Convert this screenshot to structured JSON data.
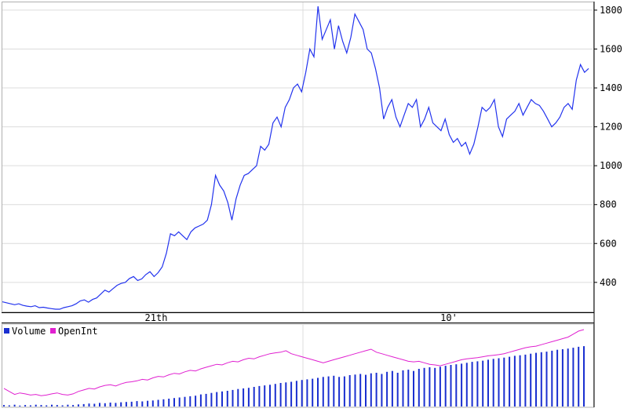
{
  "chart_data": [
    {
      "type": "line",
      "x_labels": [
        "21th",
        "10'"
      ],
      "yticks": [
        400,
        600,
        800,
        1000,
        1200,
        1400,
        1600,
        1800
      ],
      "ylim": [
        250,
        1840
      ],
      "grid": true,
      "series": [
        {
          "color": "#2233ee",
          "values": [
            300,
            295,
            290,
            285,
            290,
            282,
            278,
            275,
            280,
            270,
            272,
            268,
            265,
            262,
            262,
            270,
            275,
            280,
            290,
            305,
            310,
            298,
            312,
            320,
            340,
            360,
            350,
            368,
            385,
            395,
            400,
            420,
            430,
            410,
            418,
            440,
            455,
            430,
            450,
            480,
            550,
            650,
            640,
            660,
            640,
            620,
            660,
            680,
            690,
            700,
            720,
            800,
            950,
            900,
            870,
            810,
            720,
            830,
            900,
            950,
            960,
            980,
            1000,
            1100,
            1080,
            1110,
            1220,
            1250,
            1200,
            1300,
            1340,
            1400,
            1420,
            1380,
            1480,
            1600,
            1560,
            1820,
            1650,
            1700,
            1750,
            1600,
            1720,
            1640,
            1580,
            1660,
            1780,
            1740,
            1700,
            1600,
            1580,
            1500,
            1400,
            1240,
            1300,
            1340,
            1250,
            1200,
            1260,
            1320,
            1300,
            1340,
            1200,
            1240,
            1300,
            1220,
            1200,
            1180,
            1240,
            1160,
            1120,
            1140,
            1100,
            1120,
            1060,
            1110,
            1200,
            1300,
            1280,
            1300,
            1340,
            1200,
            1150,
            1240,
            1260,
            1280,
            1320,
            1260,
            1300,
            1340,
            1320,
            1310,
            1280,
            1240,
            1200,
            1220,
            1250,
            1300,
            1320,
            1290,
            1440,
            1520,
            1480,
            1500
          ]
        }
      ]
    },
    {
      "type": "bar",
      "legend": [
        {
          "label": "Volume",
          "color": "#1a2fd0"
        },
        {
          "label": "OpenInt",
          "color": "#e020d0"
        }
      ],
      "legend_position": "top-left",
      "series": [
        {
          "name": "Volume",
          "color": "#1a2fd0",
          "values": [
            5,
            4,
            6,
            3,
            5,
            4,
            6,
            5,
            4,
            6,
            5,
            4,
            6,
            5,
            7,
            8,
            10,
            9,
            12,
            11,
            13,
            12,
            14,
            15,
            16,
            18,
            17,
            19,
            20,
            22,
            24,
            26,
            28,
            30,
            32,
            34,
            36,
            40,
            42,
            45,
            48,
            50,
            52,
            55,
            58,
            60,
            62,
            65,
            68,
            70,
            72,
            75,
            78,
            80,
            82,
            85,
            88,
            90,
            92,
            95,
            98,
            100,
            102,
            98,
            100,
            104,
            106,
            108,
            105,
            110,
            112,
            108,
            115,
            118,
            112,
            120,
            122,
            118,
            125,
            128,
            130,
            128,
            132,
            135,
            138,
            140,
            142,
            145,
            148,
            150,
            152,
            155,
            158,
            160,
            162,
            165,
            168,
            170,
            172,
            175,
            178,
            180,
            182,
            185,
            188,
            190,
            192,
            195,
            198,
            200
          ]
        },
        {
          "name": "OpenInt",
          "color": "#e020d0",
          "values": [
            60,
            50,
            40,
            45,
            42,
            38,
            40,
            36,
            38,
            42,
            45,
            40,
            38,
            42,
            50,
            55,
            60,
            58,
            65,
            70,
            72,
            68,
            75,
            80,
            82,
            85,
            90,
            88,
            95,
            100,
            98,
            105,
            110,
            108,
            115,
            120,
            118,
            125,
            130,
            135,
            140,
            138,
            145,
            150,
            148,
            155,
            160,
            158,
            165,
            170,
            175,
            178,
            180,
            185,
            175,
            170,
            165,
            160,
            155,
            150,
            145,
            150,
            155,
            160,
            165,
            170,
            175,
            180,
            185,
            190,
            180,
            175,
            170,
            165,
            160,
            155,
            150,
            148,
            150,
            145,
            140,
            138,
            135,
            140,
            145,
            150,
            155,
            158,
            160,
            162,
            165,
            168,
            170,
            172,
            175,
            180,
            185,
            190,
            195,
            198,
            200,
            205,
            210,
            215,
            220,
            225,
            230,
            240,
            250,
            255
          ]
        }
      ]
    }
  ]
}
